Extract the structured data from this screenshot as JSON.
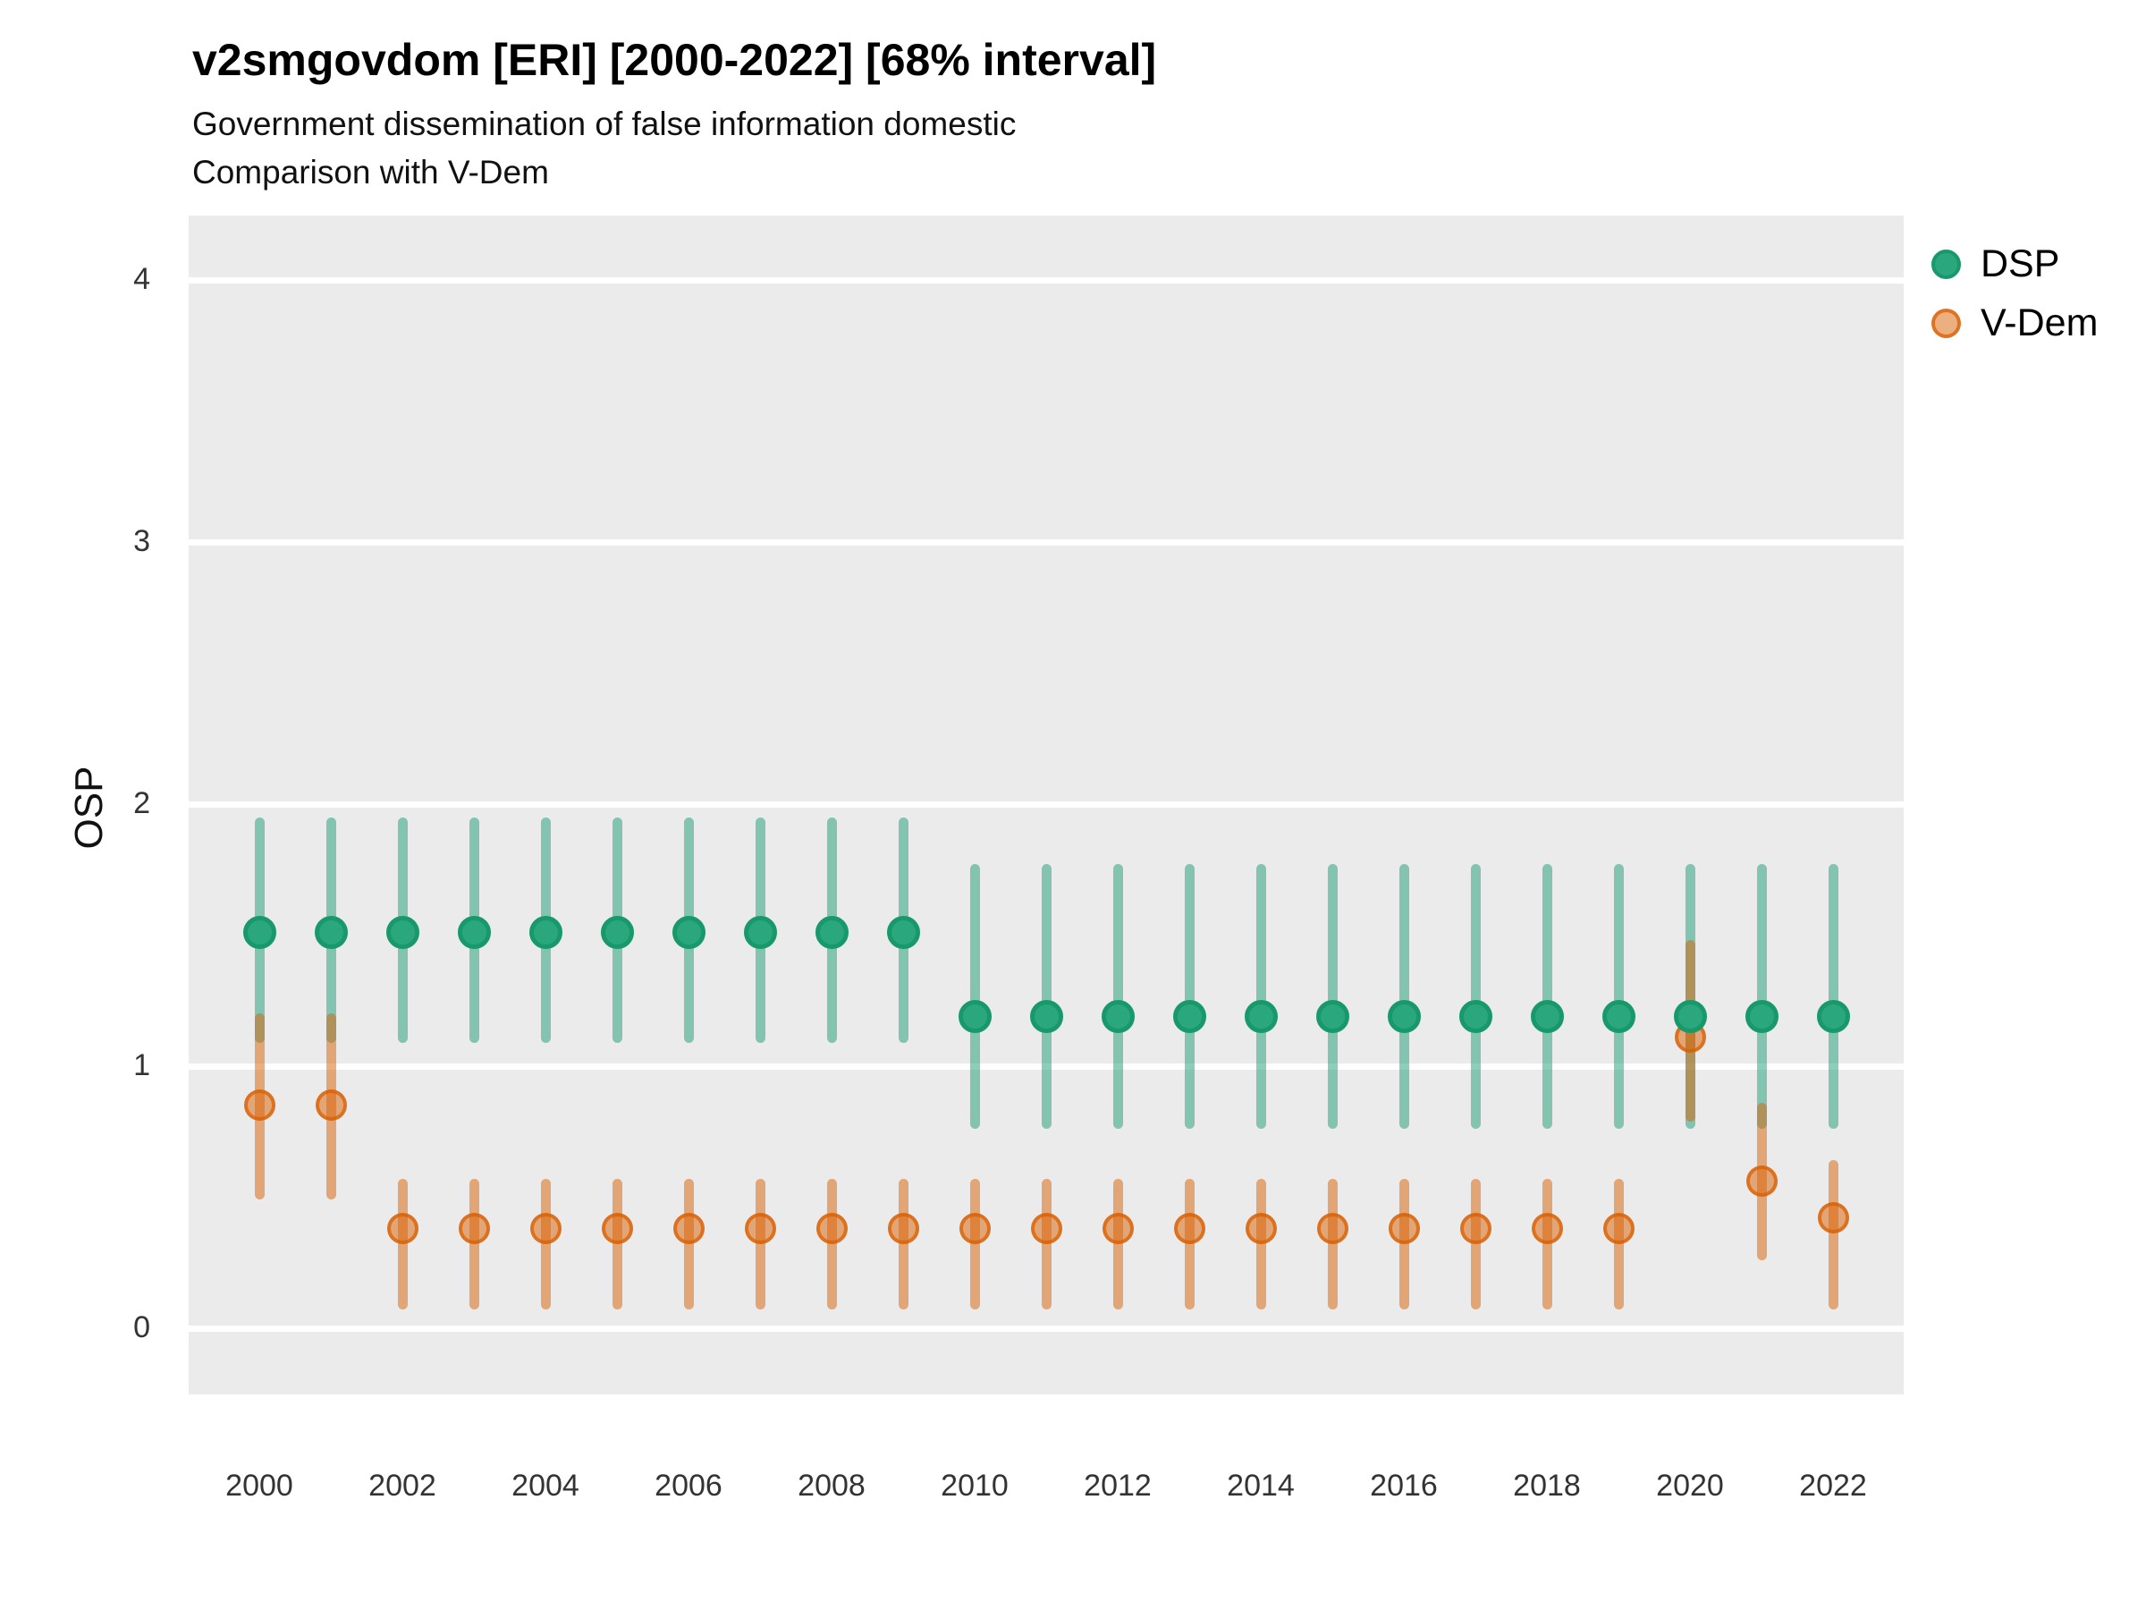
{
  "title": "v2smgovdom [ERI] [2000-2022] [68% interval]",
  "subtitle1": "Government dissemination of false information domestic",
  "subtitle2": "Comparison with V-Dem",
  "y_axis_label": "OSP",
  "legend": [
    {
      "id": "dsp",
      "label": "DSP"
    },
    {
      "id": "vdem",
      "label": "V-Dem"
    }
  ],
  "colors": {
    "dsp_point_fill": "#2ba77d",
    "dsp_point_ring": "#17996b",
    "dsp_interval": "rgba(27,158,119,0.5)",
    "vdem_point_fill": "rgba(217,95,2,0.5)",
    "vdem_point_ring": "rgba(217,95,2,0.75)",
    "vdem_interval": "rgba(217,95,2,0.5)",
    "panel_bg": "#ebebeb",
    "gridline": "#ffffff"
  },
  "chart_data": {
    "type": "pointrange",
    "title": "v2smgovdom [ERI] [2000-2022] [68% interval]",
    "interval_level": "68%",
    "xlabel": "",
    "ylabel": "OSP",
    "ylim": [
      -0.25,
      4.25
    ],
    "y_ticks": [
      0,
      1,
      2,
      3,
      4
    ],
    "x_ticks": [
      2000,
      2002,
      2004,
      2006,
      2008,
      2010,
      2012,
      2014,
      2016,
      2018,
      2020,
      2022
    ],
    "grid": "major-horizontal",
    "legend_position": "right",
    "series": [
      {
        "name": "DSP",
        "points": [
          {
            "year": 2000,
            "est": 1.51,
            "lo": 1.09,
            "hi": 1.95
          },
          {
            "year": 2001,
            "est": 1.51,
            "lo": 1.09,
            "hi": 1.95
          },
          {
            "year": 2002,
            "est": 1.51,
            "lo": 1.09,
            "hi": 1.95
          },
          {
            "year": 2003,
            "est": 1.51,
            "lo": 1.09,
            "hi": 1.95
          },
          {
            "year": 2004,
            "est": 1.51,
            "lo": 1.09,
            "hi": 1.95
          },
          {
            "year": 2005,
            "est": 1.51,
            "lo": 1.09,
            "hi": 1.95
          },
          {
            "year": 2006,
            "est": 1.51,
            "lo": 1.09,
            "hi": 1.95
          },
          {
            "year": 2007,
            "est": 1.51,
            "lo": 1.09,
            "hi": 1.95
          },
          {
            "year": 2008,
            "est": 1.51,
            "lo": 1.09,
            "hi": 1.95
          },
          {
            "year": 2009,
            "est": 1.51,
            "lo": 1.09,
            "hi": 1.95
          },
          {
            "year": 2010,
            "est": 1.19,
            "lo": 0.76,
            "hi": 1.77
          },
          {
            "year": 2011,
            "est": 1.19,
            "lo": 0.76,
            "hi": 1.77
          },
          {
            "year": 2012,
            "est": 1.19,
            "lo": 0.76,
            "hi": 1.77
          },
          {
            "year": 2013,
            "est": 1.19,
            "lo": 0.76,
            "hi": 1.77
          },
          {
            "year": 2014,
            "est": 1.19,
            "lo": 0.76,
            "hi": 1.77
          },
          {
            "year": 2015,
            "est": 1.19,
            "lo": 0.76,
            "hi": 1.77
          },
          {
            "year": 2016,
            "est": 1.19,
            "lo": 0.76,
            "hi": 1.77
          },
          {
            "year": 2017,
            "est": 1.19,
            "lo": 0.76,
            "hi": 1.77
          },
          {
            "year": 2018,
            "est": 1.19,
            "lo": 0.76,
            "hi": 1.77
          },
          {
            "year": 2019,
            "est": 1.19,
            "lo": 0.76,
            "hi": 1.77
          },
          {
            "year": 2020,
            "est": 1.19,
            "lo": 0.76,
            "hi": 1.77
          },
          {
            "year": 2021,
            "est": 1.19,
            "lo": 0.76,
            "hi": 1.77
          },
          {
            "year": 2022,
            "est": 1.19,
            "lo": 0.76,
            "hi": 1.77
          }
        ]
      },
      {
        "name": "V-Dem",
        "points": [
          {
            "year": 2000,
            "est": 0.85,
            "lo": 0.49,
            "hi": 1.2
          },
          {
            "year": 2001,
            "est": 0.85,
            "lo": 0.49,
            "hi": 1.2
          },
          {
            "year": 2002,
            "est": 0.38,
            "lo": 0.07,
            "hi": 0.57
          },
          {
            "year": 2003,
            "est": 0.38,
            "lo": 0.07,
            "hi": 0.57
          },
          {
            "year": 2004,
            "est": 0.38,
            "lo": 0.07,
            "hi": 0.57
          },
          {
            "year": 2005,
            "est": 0.38,
            "lo": 0.07,
            "hi": 0.57
          },
          {
            "year": 2006,
            "est": 0.38,
            "lo": 0.07,
            "hi": 0.57
          },
          {
            "year": 2007,
            "est": 0.38,
            "lo": 0.07,
            "hi": 0.57
          },
          {
            "year": 2008,
            "est": 0.38,
            "lo": 0.07,
            "hi": 0.57
          },
          {
            "year": 2009,
            "est": 0.38,
            "lo": 0.07,
            "hi": 0.57
          },
          {
            "year": 2010,
            "est": 0.38,
            "lo": 0.07,
            "hi": 0.57
          },
          {
            "year": 2011,
            "est": 0.38,
            "lo": 0.07,
            "hi": 0.57
          },
          {
            "year": 2012,
            "est": 0.38,
            "lo": 0.07,
            "hi": 0.57
          },
          {
            "year": 2013,
            "est": 0.38,
            "lo": 0.07,
            "hi": 0.57
          },
          {
            "year": 2014,
            "est": 0.38,
            "lo": 0.07,
            "hi": 0.57
          },
          {
            "year": 2015,
            "est": 0.38,
            "lo": 0.07,
            "hi": 0.57
          },
          {
            "year": 2016,
            "est": 0.38,
            "lo": 0.07,
            "hi": 0.57
          },
          {
            "year": 2017,
            "est": 0.38,
            "lo": 0.07,
            "hi": 0.57
          },
          {
            "year": 2018,
            "est": 0.38,
            "lo": 0.07,
            "hi": 0.57
          },
          {
            "year": 2019,
            "est": 0.38,
            "lo": 0.07,
            "hi": 0.57
          },
          {
            "year": 2020,
            "est": 1.11,
            "lo": 0.79,
            "hi": 1.48
          },
          {
            "year": 2021,
            "est": 0.56,
            "lo": 0.26,
            "hi": 0.86
          },
          {
            "year": 2022,
            "est": 0.42,
            "lo": 0.07,
            "hi": 0.64
          }
        ]
      }
    ]
  }
}
